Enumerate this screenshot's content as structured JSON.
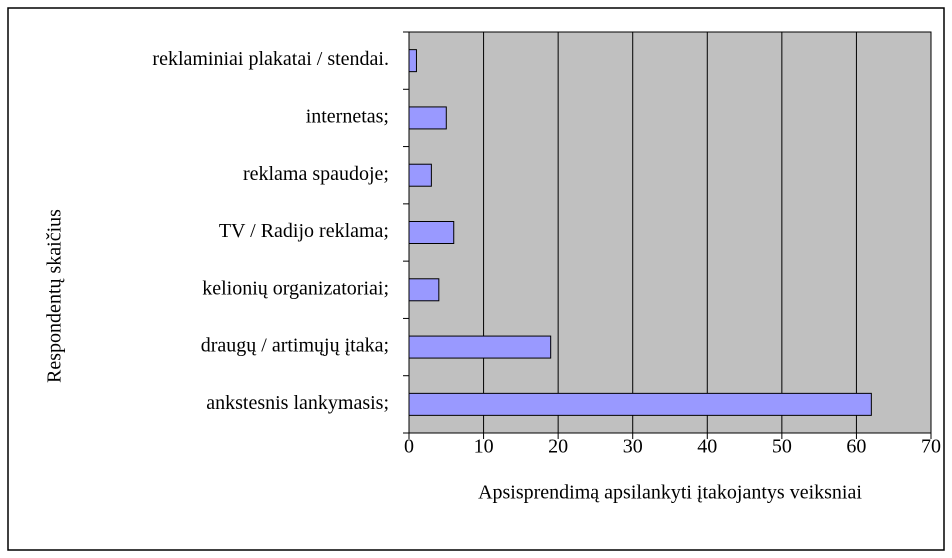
{
  "chart_data": {
    "type": "bar",
    "orientation": "horizontal",
    "xlabel": "Apsisprendimą apsilankyti įtakojantys veiksniai",
    "ylabel": "Respondentų skaičius",
    "categories": [
      "reklaminiai plakatai / stendai.",
      "internetas;",
      "reklama spaudoje;",
      "TV / Radijo reklama;",
      "kelionių organizatoriai;",
      "draugų / artimųjų įtaka;",
      "ankstesnis lankymasis;"
    ],
    "values": [
      1,
      5,
      3,
      6,
      4,
      19,
      62
    ],
    "color": "#9999ff",
    "xlim": [
      0,
      70
    ],
    "xticks": [
      0,
      10,
      20,
      30,
      40,
      50,
      60,
      70
    ],
    "grid": true
  }
}
